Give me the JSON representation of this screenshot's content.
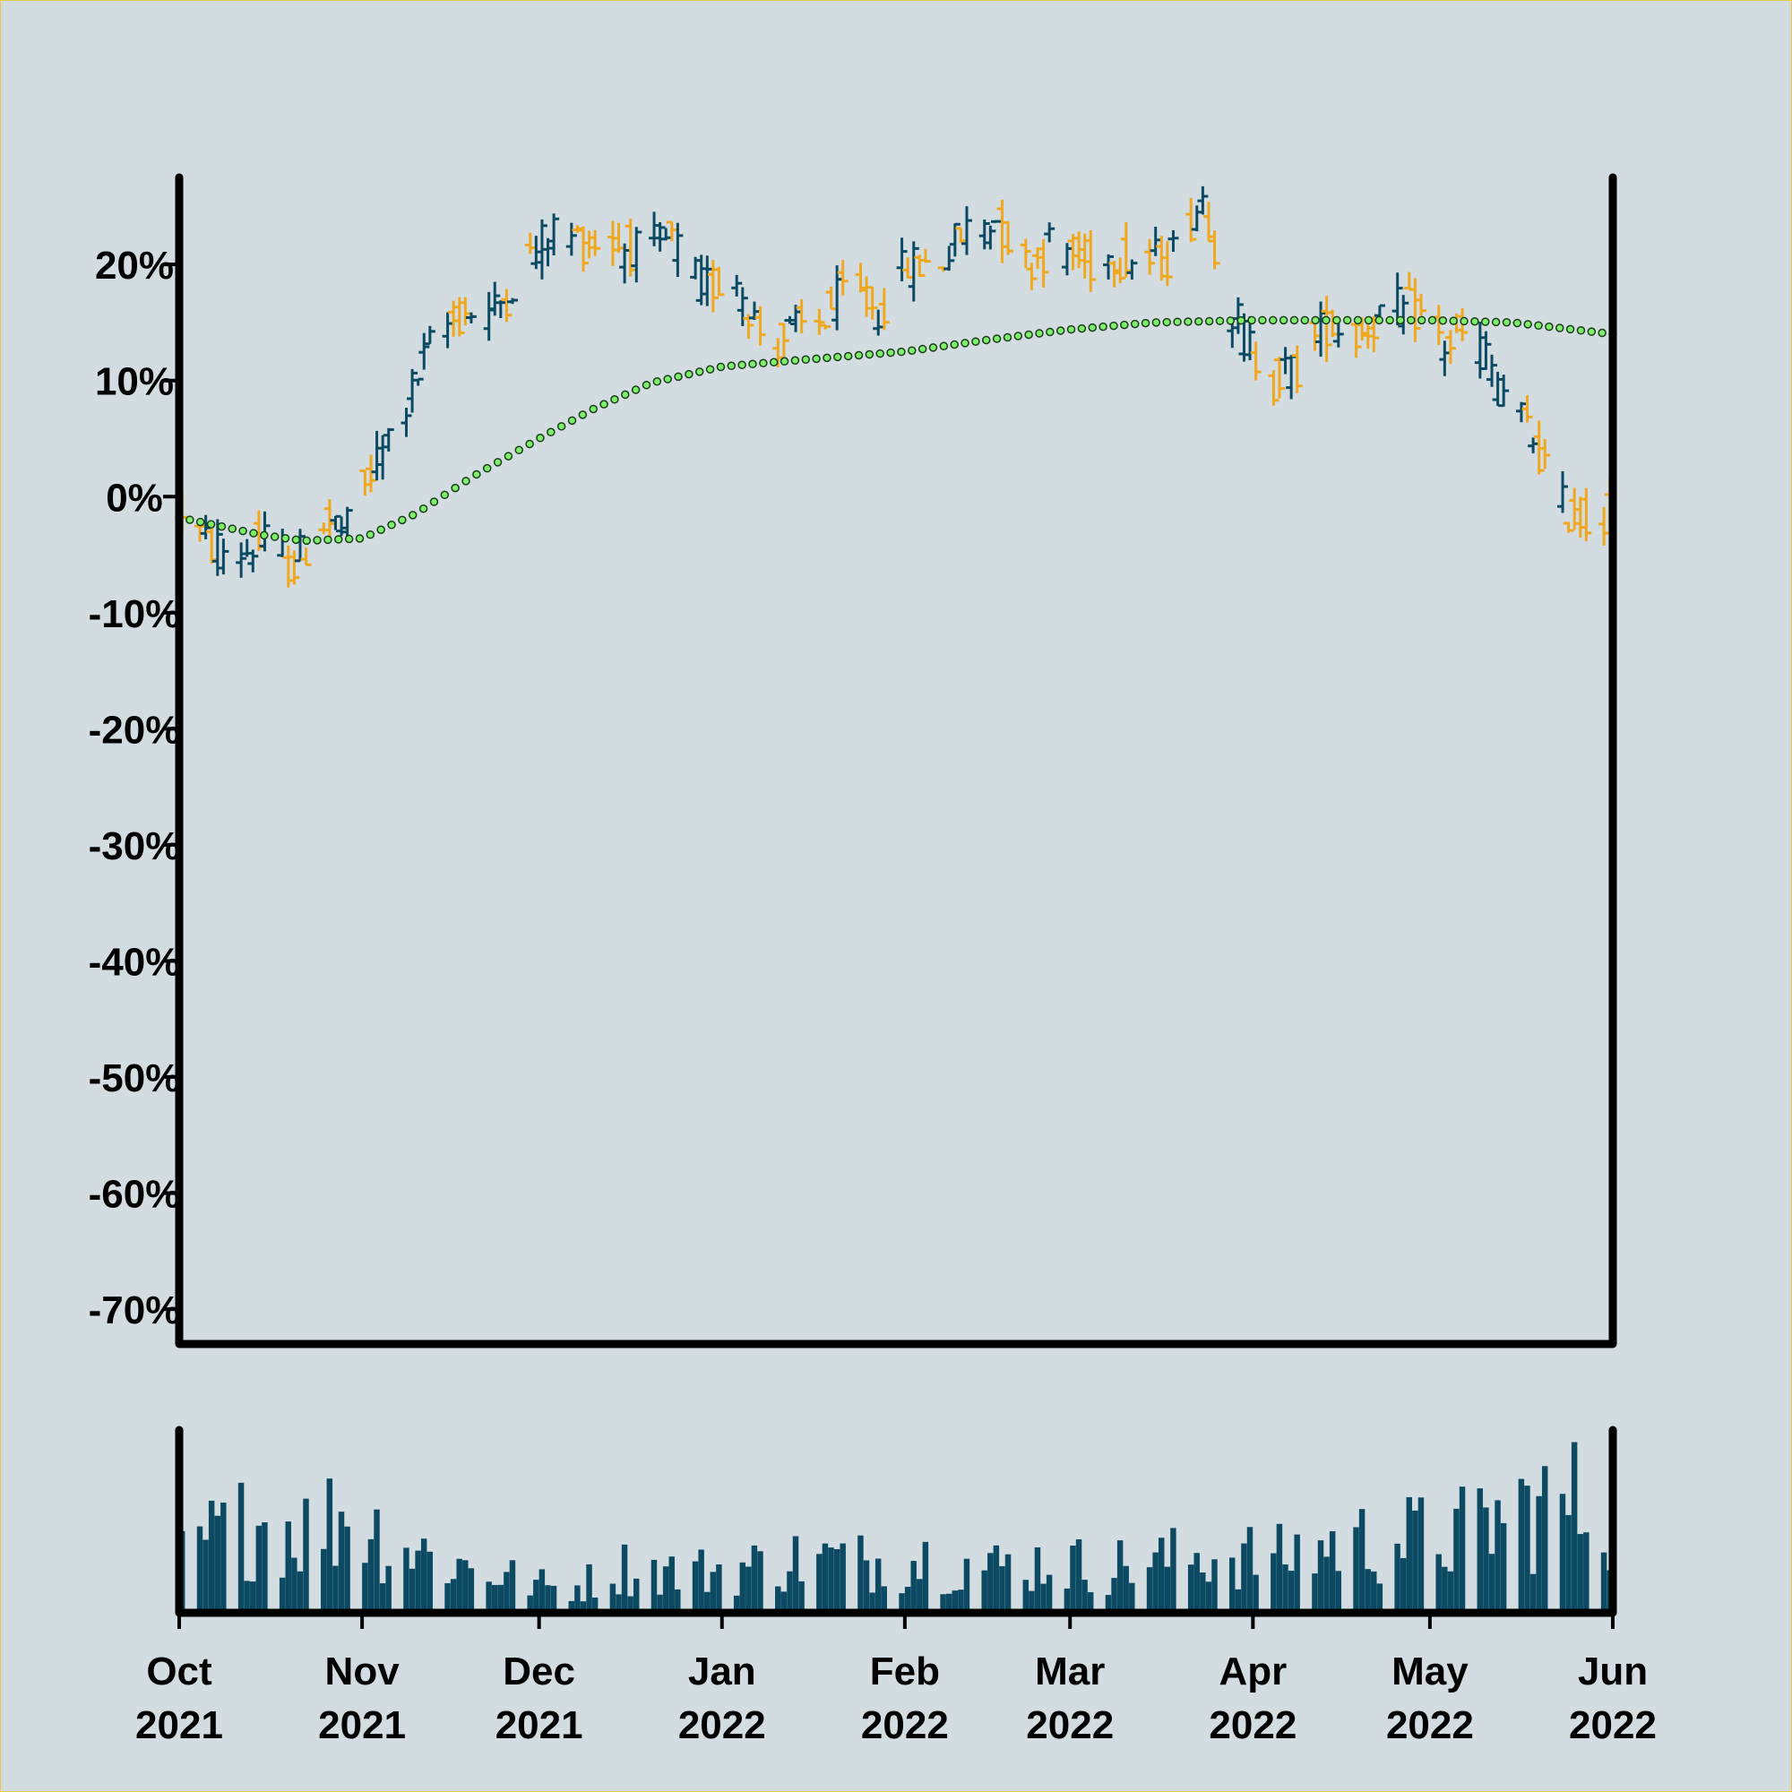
{
  "colors": {
    "background": "#d3dce1",
    "up_bar": "#0b4a62",
    "down_bar": "#f0a820",
    "volume": "#0b4a62",
    "moving_average_fill": "#7cf06a",
    "moving_average_stroke": "#1a3a1a",
    "axes": "#000000"
  },
  "chart_data": [
    {
      "type": "ohlc",
      "title": "",
      "xlabel": "",
      "ylabel": "",
      "x_start": "2021-10-01",
      "x_end": "2022-06-01",
      "ylim": [
        -73,
        27.5
      ],
      "yticks": [
        20,
        10,
        0,
        -10,
        -20,
        -30,
        -40,
        -50,
        -60,
        -70
      ],
      "ytick_labels": [
        "20%",
        "10%",
        "0%",
        "-10%",
        "-20%",
        "-30%",
        "-40%",
        "-50%",
        "-60%",
        "-70%"
      ],
      "price_path": [
        [
          "2021-10-01",
          -1
        ],
        [
          "2021-10-05",
          -4
        ],
        [
          "2021-10-10",
          -5
        ],
        [
          "2021-10-15",
          -4
        ],
        [
          "2021-10-20",
          -6
        ],
        [
          "2021-10-25",
          -2
        ],
        [
          "2021-10-29",
          -3
        ],
        [
          "2021-11-03",
          3
        ],
        [
          "2021-11-08",
          8
        ],
        [
          "2021-11-13",
          14
        ],
        [
          "2021-11-18",
          16
        ],
        [
          "2021-11-23",
          16
        ],
        [
          "2021-11-28",
          20
        ],
        [
          "2021-12-03",
          23
        ],
        [
          "2021-12-08",
          22
        ],
        [
          "2021-12-13",
          22
        ],
        [
          "2021-12-18",
          21
        ],
        [
          "2021-12-23",
          22
        ],
        [
          "2021-12-28",
          18
        ],
        [
          "2022-01-03",
          19
        ],
        [
          "2022-01-08",
          13
        ],
        [
          "2022-01-12",
          14
        ],
        [
          "2022-01-17",
          15
        ],
        [
          "2022-01-22",
          18
        ],
        [
          "2022-01-27",
          16
        ],
        [
          "2022-02-01",
          20
        ],
        [
          "2022-02-06",
          20
        ],
        [
          "2022-02-11",
          23
        ],
        [
          "2022-02-16",
          24
        ],
        [
          "2022-02-21",
          20
        ],
        [
          "2022-02-26",
          22
        ],
        [
          "2022-03-03",
          20
        ],
        [
          "2022-03-08",
          21
        ],
        [
          "2022-03-13",
          20
        ],
        [
          "2022-03-18",
          21
        ],
        [
          "2022-03-23",
          26
        ],
        [
          "2022-03-28",
          16
        ],
        [
          "2022-04-03",
          10
        ],
        [
          "2022-04-08",
          11
        ],
        [
          "2022-04-13",
          15
        ],
        [
          "2022-04-18",
          14
        ],
        [
          "2022-04-23",
          16
        ],
        [
          "2022-04-28",
          16
        ],
        [
          "2022-05-03",
          13
        ],
        [
          "2022-05-08",
          14
        ],
        [
          "2022-05-13",
          9
        ],
        [
          "2022-05-18",
          5
        ],
        [
          "2022-05-23",
          -1
        ],
        [
          "2022-05-27",
          -2
        ],
        [
          "2022-05-31",
          -1
        ]
      ],
      "moving_average": [
        [
          "2021-10-01",
          -1.8
        ],
        [
          "2021-10-15",
          -3.3
        ],
        [
          "2021-10-22",
          -3.8
        ],
        [
          "2021-11-01",
          -3.6
        ],
        [
          "2021-11-10",
          -1.5
        ],
        [
          "2021-11-20",
          1.8
        ],
        [
          "2021-12-01",
          5.0
        ],
        [
          "2021-12-10",
          7.5
        ],
        [
          "2021-12-20",
          9.8
        ],
        [
          "2022-01-01",
          11.2
        ],
        [
          "2022-01-15",
          11.8
        ],
        [
          "2022-02-01",
          12.5
        ],
        [
          "2022-02-15",
          13.5
        ],
        [
          "2022-03-01",
          14.4
        ],
        [
          "2022-03-15",
          15.0
        ],
        [
          "2022-04-01",
          15.2
        ],
        [
          "2022-04-15",
          15.2
        ],
        [
          "2022-05-01",
          15.2
        ],
        [
          "2022-05-15",
          15.0
        ],
        [
          "2022-06-01",
          14.0
        ]
      ]
    },
    {
      "type": "bar",
      "title": "",
      "series_name": "",
      "x_start": "2021-10-01",
      "x_end": "2022-06-01",
      "xtick_labels": [
        {
          "date": "2021-10-01",
          "month": "Oct",
          "year": "2021"
        },
        {
          "date": "2021-11-01",
          "month": "Nov",
          "year": "2021"
        },
        {
          "date": "2021-12-01",
          "month": "Dec",
          "year": "2021"
        },
        {
          "date": "2022-01-01",
          "month": "Jan",
          "year": "2022"
        },
        {
          "date": "2022-02-01",
          "month": "Feb",
          "year": "2022"
        },
        {
          "date": "2022-03-01",
          "month": "Mar",
          "year": "2022"
        },
        {
          "date": "2022-04-01",
          "month": "Apr",
          "year": "2022"
        },
        {
          "date": "2022-05-01",
          "month": "May",
          "year": "2022"
        },
        {
          "date": "2022-06-01",
          "month": "Jun",
          "year": "2022"
        }
      ],
      "volume_path": [
        [
          "2021-10-01",
          0.3
        ],
        [
          "2021-10-08",
          0.45
        ],
        [
          "2021-10-15",
          0.5
        ],
        [
          "2021-10-22",
          0.45
        ],
        [
          "2021-10-29",
          0.55
        ],
        [
          "2021-11-05",
          0.4
        ],
        [
          "2021-11-15",
          0.28
        ],
        [
          "2021-11-25",
          0.2
        ],
        [
          "2021-12-05",
          0.12
        ],
        [
          "2021-12-15",
          0.25
        ],
        [
          "2021-12-25",
          0.22
        ],
        [
          "2022-01-05",
          0.25
        ],
        [
          "2022-01-15",
          0.3
        ],
        [
          "2022-01-25",
          0.28
        ],
        [
          "2022-02-05",
          0.3
        ],
        [
          "2022-02-15",
          0.25
        ],
        [
          "2022-02-25",
          0.28
        ],
        [
          "2022-03-05",
          0.25
        ],
        [
          "2022-03-15",
          0.28
        ],
        [
          "2022-03-25",
          0.32
        ],
        [
          "2022-04-05",
          0.3
        ],
        [
          "2022-04-15",
          0.38
        ],
        [
          "2022-04-25",
          0.4
        ],
        [
          "2022-05-05",
          0.42
        ],
        [
          "2022-05-15",
          0.55
        ],
        [
          "2022-05-25",
          0.6
        ],
        [
          "2022-06-01",
          0.58
        ]
      ]
    }
  ]
}
